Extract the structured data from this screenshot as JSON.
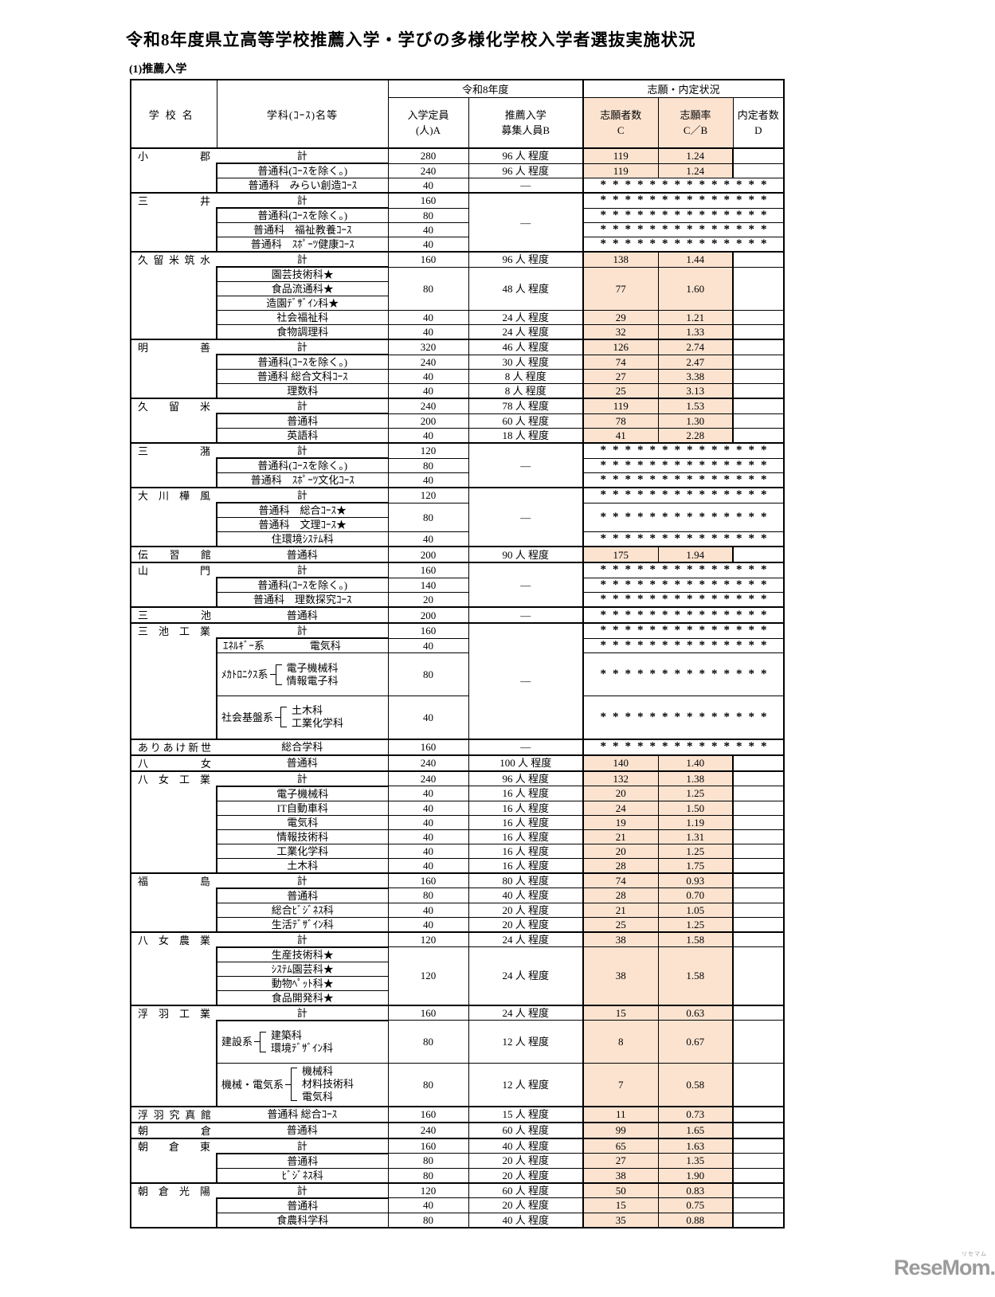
{
  "page": {
    "title": "令和8年度県立高等学校推薦入学・学びの多様化学校入学者選抜実施状況",
    "section": "(1)推薦入学"
  },
  "watermark": {
    "logo": "ReseMom.",
    "ruby": "リセマム"
  },
  "colors": {
    "highlight": "#fbe3d0",
    "border": "#000000",
    "logo_gray": "#9b9b9b"
  },
  "table": {
    "stars": "**************",
    "dash": "―",
    "header": {
      "school": "学校名",
      "department": "学科(ｺｰｽ)名等",
      "year_group": "令和8年度",
      "status_group": "志願・内定状況",
      "capacity": [
        "入学定員",
        "(人)A"
      ],
      "recruit": [
        "推薦入学",
        "募集人員B"
      ],
      "applicants": [
        "志願者数",
        "C"
      ],
      "rate": [
        "志願率",
        "C／B"
      ],
      "accepted": [
        "内定者数",
        "D"
      ]
    },
    "schools": [
      {
        "name": "小郡",
        "rows": [
          {
            "d": "計",
            "t": 1,
            "cap": [
              "280",
              1
            ],
            "rec": [
              "96 人 程度",
              1
            ],
            "res": {
              "c": "119",
              "cb": "1.24",
              "s": 1
            }
          },
          {
            "d": "普通科(ｺｰｽを除く。)",
            "cap": [
              "240",
              1
            ],
            "rec": [
              "96 人 程度",
              1
            ],
            "res": {
              "c": "119",
              "cb": "1.24",
              "s": 1
            }
          },
          {
            "d": "普通科　みらい創造ｺｰｽ",
            "cap": [
              "40",
              1
            ],
            "rec": [
              "―",
              1
            ],
            "star": 1
          }
        ]
      },
      {
        "name": "三井",
        "rows": [
          {
            "d": "計",
            "t": 1,
            "cap": [
              "160",
              1
            ],
            "rec": [
              "―",
              4
            ],
            "star": 1
          },
          {
            "d": "普通科(ｺｰｽを除く。)",
            "cap": [
              "80",
              1
            ],
            "star": 1
          },
          {
            "d": "普通科　福祉教養ｺｰｽ",
            "cap": [
              "40",
              1
            ],
            "star": 1
          },
          {
            "d": "普通科　ｽﾎﾟｰﾂ健康ｺｰｽ",
            "cap": [
              "40",
              1
            ],
            "star": 1
          }
        ]
      },
      {
        "name": "久留米筑水",
        "rows": [
          {
            "d": "計",
            "t": 1,
            "cap": [
              "160",
              1
            ],
            "rec": [
              "96 人 程度",
              1
            ],
            "res": {
              "c": "138",
              "cb": "1.44",
              "s": 1
            }
          },
          {
            "d": "園芸技術科★",
            "cap": [
              "80",
              3
            ],
            "rec": [
              "48 人 程度",
              3
            ],
            "res": {
              "c": "77",
              "cb": "1.60",
              "s": 3
            }
          },
          {
            "d": "食品流通科★"
          },
          {
            "d": "造園ﾃﾞｻﾞｲﾝ科★"
          },
          {
            "d": "社会福祉科",
            "cap": [
              "40",
              1
            ],
            "rec": [
              "24 人 程度",
              1
            ],
            "res": {
              "c": "29",
              "cb": "1.21",
              "s": 1
            }
          },
          {
            "d": "食物調理科",
            "cap": [
              "40",
              1
            ],
            "rec": [
              "24 人 程度",
              1
            ],
            "res": {
              "c": "32",
              "cb": "1.33",
              "s": 1
            }
          }
        ]
      },
      {
        "name": "明善",
        "rows": [
          {
            "d": "計",
            "t": 1,
            "cap": [
              "320",
              1
            ],
            "rec": [
              "46 人 程度",
              1
            ],
            "res": {
              "c": "126",
              "cb": "2.74",
              "s": 1
            }
          },
          {
            "d": "普通科(ｺｰｽを除く。)",
            "cap": [
              "240",
              1
            ],
            "rec": [
              "30 人 程度",
              1
            ],
            "res": {
              "c": "74",
              "cb": "2.47",
              "s": 1
            }
          },
          {
            "d": "普通科 総合文科ｺｰｽ",
            "cap": [
              "40",
              1
            ],
            "rec": [
              "8 人 程度",
              1
            ],
            "res": {
              "c": "27",
              "cb": "3.38",
              "s": 1
            }
          },
          {
            "d": "理数科",
            "cap": [
              "40",
              1
            ],
            "rec": [
              "8 人 程度",
              1
            ],
            "res": {
              "c": "25",
              "cb": "3.13",
              "s": 1
            }
          }
        ]
      },
      {
        "name": "久留米",
        "rows": [
          {
            "d": "計",
            "t": 1,
            "cap": [
              "240",
              1
            ],
            "rec": [
              "78 人 程度",
              1
            ],
            "res": {
              "c": "119",
              "cb": "1.53",
              "s": 1
            }
          },
          {
            "d": "普通科",
            "cap": [
              "200",
              1
            ],
            "rec": [
              "60 人 程度",
              1
            ],
            "res": {
              "c": "78",
              "cb": "1.30",
              "s": 1
            }
          },
          {
            "d": "英語科",
            "cap": [
              "40",
              1
            ],
            "rec": [
              "18 人 程度",
              1
            ],
            "res": {
              "c": "41",
              "cb": "2.28",
              "s": 1
            }
          }
        ]
      },
      {
        "name": "三潴",
        "rows": [
          {
            "d": "計",
            "t": 1,
            "cap": [
              "120",
              1
            ],
            "rec": [
              "―",
              3
            ],
            "star": 1
          },
          {
            "d": "普通科(ｺｰｽを除く。)",
            "cap": [
              "80",
              1
            ],
            "star": 1
          },
          {
            "d": "普通科　ｽﾎﾟｰﾂ文化ｺｰｽ",
            "cap": [
              "40",
              1
            ],
            "star": 1
          }
        ]
      },
      {
        "name": "大川樺風",
        "rows": [
          {
            "d": "計",
            "t": 1,
            "cap": [
              "120",
              1
            ],
            "rec": [
              "―",
              4
            ],
            "star": 1
          },
          {
            "d": "普通科　総合ｺｰｽ★",
            "cap": [
              "80",
              2
            ],
            "star": 2
          },
          {
            "d": "普通科　文理ｺｰｽ★"
          },
          {
            "d": "住環境ｼｽﾃﾑ科",
            "cap": [
              "40",
              1
            ],
            "star": 1
          }
        ]
      },
      {
        "name": "伝習館",
        "rows": [
          {
            "d": "普通科",
            "t": 1,
            "cap": [
              "200",
              1
            ],
            "rec": [
              "90 人 程度",
              1
            ],
            "res": {
              "c": "175",
              "cb": "1.94",
              "s": 1
            }
          }
        ]
      },
      {
        "name": "山門",
        "rows": [
          {
            "d": "計",
            "t": 1,
            "cap": [
              "160",
              1
            ],
            "rec": [
              "―",
              3
            ],
            "star": 1
          },
          {
            "d": "普通科(ｺｰｽを除く。)",
            "cap": [
              "140",
              1
            ],
            "star": 1
          },
          {
            "d": "普通科　理数探究ｺｰｽ",
            "cap": [
              "20",
              1
            ],
            "star": 1
          }
        ]
      },
      {
        "name": "三池",
        "rows": [
          {
            "d": "普通科",
            "t": 1,
            "cap": [
              "200",
              1
            ],
            "rec": [
              "―",
              1
            ],
            "star": 1
          }
        ]
      },
      {
        "name": "三池工業",
        "rows": [
          {
            "d": "計",
            "t": 1,
            "cap": [
              "160",
              1
            ],
            "rec": [
              "―",
              8
            ],
            "star": 1
          },
          {
            "d": {
              "label": "ｴﾈﾙｷﾞｰ系",
              "inline": "電気科"
            },
            "cap": [
              "40",
              1
            ],
            "star": 1
          },
          {
            "d": {
              "label": "ﾒｶﾄﾛﾆｸｽ系",
              "items": [
                "電子機械科",
                "情報電子科"
              ]
            },
            "u": 3,
            "cap": [
              "80",
              3
            ],
            "star": 3
          },
          {
            "d": {
              "label": "社会基盤系",
              "items": [
                "土木科",
                "工業化学科"
              ]
            },
            "u": 3,
            "cap": [
              "40",
              3
            ],
            "star": 3
          }
        ]
      },
      {
        "name": "ありあけ新世",
        "rows": [
          {
            "d": "総合学科",
            "t": 1,
            "cap": [
              "160",
              1
            ],
            "rec": [
              "―",
              1
            ],
            "star": 1
          }
        ]
      },
      {
        "name": "八女",
        "rows": [
          {
            "d": "普通科",
            "t": 1,
            "cap": [
              "240",
              1
            ],
            "rec": [
              "100 人 程度",
              1
            ],
            "res": {
              "c": "140",
              "cb": "1.40",
              "s": 1
            }
          }
        ]
      },
      {
        "name": "八女工業",
        "rows": [
          {
            "d": "計",
            "t": 1,
            "cap": [
              "240",
              1
            ],
            "rec": [
              "96 人 程度",
              1
            ],
            "res": {
              "c": "132",
              "cb": "1.38",
              "s": 1
            }
          },
          {
            "d": "電子機械科",
            "cap": [
              "40",
              1
            ],
            "rec": [
              "16 人 程度",
              1
            ],
            "res": {
              "c": "20",
              "cb": "1.25",
              "s": 1
            }
          },
          {
            "d": "IT自動車科",
            "cap": [
              "40",
              1
            ],
            "rec": [
              "16 人 程度",
              1
            ],
            "res": {
              "c": "24",
              "cb": "1.50",
              "s": 1
            }
          },
          {
            "d": "電気科",
            "cap": [
              "40",
              1
            ],
            "rec": [
              "16 人 程度",
              1
            ],
            "res": {
              "c": "19",
              "cb": "1.19",
              "s": 1
            }
          },
          {
            "d": "情報技術科",
            "cap": [
              "40",
              1
            ],
            "rec": [
              "16 人 程度",
              1
            ],
            "res": {
              "c": "21",
              "cb": "1.31",
              "s": 1
            }
          },
          {
            "d": "工業化学科",
            "cap": [
              "40",
              1
            ],
            "rec": [
              "16 人 程度",
              1
            ],
            "res": {
              "c": "20",
              "cb": "1.25",
              "s": 1
            }
          },
          {
            "d": "土木科",
            "cap": [
              "40",
              1
            ],
            "rec": [
              "16 人 程度",
              1
            ],
            "res": {
              "c": "28",
              "cb": "1.75",
              "s": 1
            }
          }
        ]
      },
      {
        "name": "福島",
        "rows": [
          {
            "d": "計",
            "t": 1,
            "cap": [
              "160",
              1
            ],
            "rec": [
              "80 人 程度",
              1
            ],
            "res": {
              "c": "74",
              "cb": "0.93",
              "s": 1
            }
          },
          {
            "d": "普通科",
            "cap": [
              "80",
              1
            ],
            "rec": [
              "40 人 程度",
              1
            ],
            "res": {
              "c": "28",
              "cb": "0.70",
              "s": 1
            }
          },
          {
            "d": "総合ﾋﾞｼﾞﾈｽ科",
            "cap": [
              "40",
              1
            ],
            "rec": [
              "20 人 程度",
              1
            ],
            "res": {
              "c": "21",
              "cb": "1.05",
              "s": 1
            }
          },
          {
            "d": "生活ﾃﾞｻﾞｲﾝ科",
            "cap": [
              "40",
              1
            ],
            "rec": [
              "20 人 程度",
              1
            ],
            "res": {
              "c": "25",
              "cb": "1.25",
              "s": 1
            }
          }
        ]
      },
      {
        "name": "八女農業",
        "rows": [
          {
            "d": "計",
            "t": 1,
            "cap": [
              "120",
              1
            ],
            "rec": [
              "24 人 程度",
              1
            ],
            "res": {
              "c": "38",
              "cb": "1.58",
              "s": 1
            }
          },
          {
            "d": "生産技術科★",
            "cap": [
              "120",
              4
            ],
            "rec": [
              "24 人 程度",
              4
            ],
            "res": {
              "c": "38",
              "cb": "1.58",
              "s": 4
            }
          },
          {
            "d": "ｼｽﾃﾑ園芸科★"
          },
          {
            "d": "動物ﾍﾟｯﾄ科★"
          },
          {
            "d": "食品開発科★"
          }
        ]
      },
      {
        "name": "浮羽工業",
        "rows": [
          {
            "d": "計",
            "t": 1,
            "cap": [
              "160",
              1
            ],
            "rec": [
              "24 人 程度",
              1
            ],
            "res": {
              "c": "15",
              "cb": "0.63",
              "s": 1
            }
          },
          {
            "d": {
              "label": "建設系",
              "items": [
                "建築科",
                "環境ﾃﾞｻﾞｲﾝ科"
              ]
            },
            "u": 3,
            "cap": [
              "80",
              3
            ],
            "rec": [
              "12 人 程度",
              3
            ],
            "res": {
              "c": "8",
              "cb": "0.67",
              "s": 3
            }
          },
          {
            "d": {
              "label": "機械・電気系",
              "items": [
                "機械科",
                "材料技術科",
                "電気科"
              ]
            },
            "u": 3,
            "cap": [
              "80",
              3
            ],
            "rec": [
              "12 人 程度",
              3
            ],
            "res": {
              "c": "7",
              "cb": "0.58",
              "s": 3
            }
          }
        ]
      },
      {
        "name": "浮羽究真館",
        "rows": [
          {
            "d": "普通科 総合ｺｰｽ",
            "t": 1,
            "cap": [
              "160",
              1
            ],
            "rec": [
              "15 人 程度",
              1
            ],
            "res": {
              "c": "11",
              "cb": "0.73",
              "s": 1
            }
          }
        ]
      },
      {
        "name": "朝倉",
        "rows": [
          {
            "d": "普通科",
            "t": 1,
            "cap": [
              "240",
              1
            ],
            "rec": [
              "60 人 程度",
              1
            ],
            "res": {
              "c": "99",
              "cb": "1.65",
              "s": 1
            }
          }
        ]
      },
      {
        "name": "朝倉東",
        "rows": [
          {
            "d": "計",
            "t": 1,
            "cap": [
              "160",
              1
            ],
            "rec": [
              "40 人 程度",
              1
            ],
            "res": {
              "c": "65",
              "cb": "1.63",
              "s": 1
            }
          },
          {
            "d": "普通科",
            "cap": [
              "80",
              1
            ],
            "rec": [
              "20 人 程度",
              1
            ],
            "res": {
              "c": "27",
              "cb": "1.35",
              "s": 1
            }
          },
          {
            "d": "ﾋﾞｼﾞﾈｽ科",
            "cap": [
              "80",
              1
            ],
            "rec": [
              "20 人 程度",
              1
            ],
            "res": {
              "c": "38",
              "cb": "1.90",
              "s": 1
            }
          }
        ]
      },
      {
        "name": "朝倉光陽",
        "rows": [
          {
            "d": "計",
            "t": 1,
            "cap": [
              "120",
              1
            ],
            "rec": [
              "60 人 程度",
              1
            ],
            "res": {
              "c": "50",
              "cb": "0.83",
              "s": 1
            }
          },
          {
            "d": "普通科",
            "cap": [
              "40",
              1
            ],
            "rec": [
              "20 人 程度",
              1
            ],
            "res": {
              "c": "15",
              "cb": "0.75",
              "s": 1
            }
          },
          {
            "d": "食農科学科",
            "cap": [
              "80",
              1
            ],
            "rec": [
              "40 人 程度",
              1
            ],
            "res": {
              "c": "35",
              "cb": "0.88",
              "s": 1
            }
          }
        ]
      }
    ]
  }
}
